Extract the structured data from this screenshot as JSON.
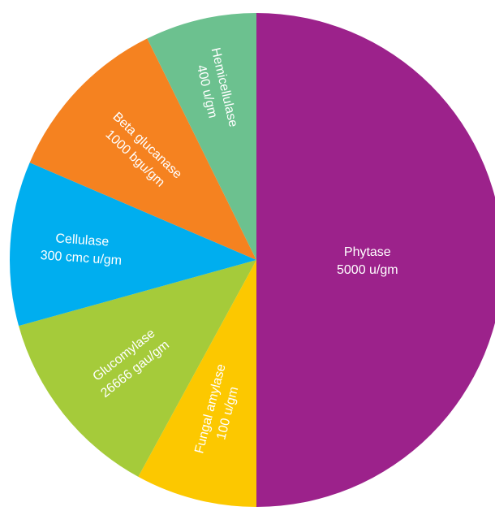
{
  "chart_data": {
    "type": "pie",
    "title": "",
    "start": "top",
    "direction": "clockwise",
    "slices": [
      {
        "name": "Phytase",
        "value_label": "5000 u/gm",
        "share": 0.5,
        "color": "#9c228b"
      },
      {
        "name": "Fungal amylase",
        "value_label": "100 u/gm",
        "share": 0.0795,
        "color": "#fcc800"
      },
      {
        "name": "Glucomylase",
        "value_label": "26666 gau/gm",
        "share": 0.1275,
        "color": "#a5cb3a"
      },
      {
        "name": "Cellulase",
        "value_label": "300 cmc u/gm",
        "share": 0.1075,
        "color": "#00aeef"
      },
      {
        "name": "Beta glucanase",
        "value_label": "1000 bgu/gm",
        "share": 0.1125,
        "color": "#f58220"
      },
      {
        "name": "Hemicellulase",
        "value_label": "400 u/gm",
        "share": 0.073,
        "color": "#6cc18f"
      }
    ]
  }
}
